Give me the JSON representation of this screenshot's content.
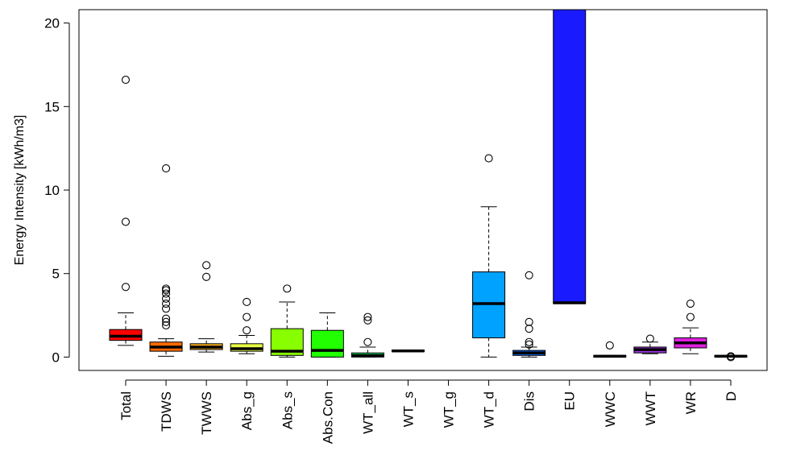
{
  "chart_data": {
    "type": "boxplot",
    "ylabel": "Energy Intensity [kWh/m3]",
    "ylim": [
      -0.8,
      20.8
    ],
    "yticks": [
      0,
      5,
      10,
      15,
      20
    ],
    "categories": [
      "Total",
      "TDWS",
      "TWWS",
      "Abs_g",
      "Abs_s",
      "Abs.Con",
      "WT_all",
      "WT_s",
      "WT_g",
      "WT_d",
      "Dis",
      "EU",
      "WWC",
      "WWT",
      "WR",
      "D"
    ],
    "boxes": [
      {
        "name": "Total",
        "color": "#ff0000",
        "q1": 1.0,
        "median": 1.25,
        "q3": 1.65,
        "whisker_low": 0.7,
        "whisker_high": 2.65,
        "outliers": [
          4.2,
          8.1,
          16.6
        ]
      },
      {
        "name": "TDWS",
        "color": "#ff6a00",
        "q1": 0.35,
        "median": 0.6,
        "q3": 0.9,
        "whisker_low": 0.05,
        "whisker_high": 1.1,
        "outliers": [
          1.9,
          2.1,
          2.3,
          2.9,
          3.2,
          3.5,
          3.8,
          4.0,
          4.1,
          11.3
        ]
      },
      {
        "name": "TWWS",
        "color": "#ffae1a",
        "q1": 0.45,
        "median": 0.6,
        "q3": 0.8,
        "whisker_low": 0.3,
        "whisker_high": 1.1,
        "outliers": [
          4.8,
          5.5
        ]
      },
      {
        "name": "Abs_g",
        "color": "#e8ff40",
        "q1": 0.35,
        "median": 0.5,
        "q3": 0.8,
        "whisker_low": 0.2,
        "whisker_high": 1.3,
        "outliers": [
          1.6,
          2.4,
          3.3
        ]
      },
      {
        "name": "Abs_s",
        "color": "#88ff00",
        "q1": 0.1,
        "median": 0.35,
        "q3": 1.7,
        "whisker_low": 0.0,
        "whisker_high": 3.3,
        "outliers": [
          4.1
        ]
      },
      {
        "name": "Abs.Con",
        "color": "#22ff00",
        "q1": 0.0,
        "median": 0.4,
        "q3": 1.6,
        "whisker_low": 0.0,
        "whisker_high": 2.65,
        "outliers": []
      },
      {
        "name": "WT_all",
        "color": "#20ff70",
        "q1": 0.0,
        "median": 0.1,
        "q3": 0.25,
        "whisker_low": 0.0,
        "whisker_high": 0.6,
        "outliers": [
          0.9,
          2.2,
          2.4
        ]
      },
      {
        "name": "WT_s",
        "color": "#00ffcc",
        "q1": 0.33,
        "median": 0.37,
        "q3": 0.42,
        "whisker_low": 0.33,
        "whisker_high": 0.42,
        "outliers": []
      },
      {
        "name": "WT_g",
        "color": "#00e5ff",
        "q1": null,
        "median": null,
        "q3": null,
        "whisker_low": null,
        "whisker_high": null,
        "outliers": []
      },
      {
        "name": "WT_d",
        "color": "#00a2ff",
        "q1": 1.15,
        "median": 3.2,
        "q3": 5.1,
        "whisker_low": 0.0,
        "whisker_high": 9.0,
        "outliers": [
          11.9
        ]
      },
      {
        "name": "Dis",
        "color": "#0066ff",
        "q1": 0.1,
        "median": 0.25,
        "q3": 0.4,
        "whisker_low": 0.0,
        "whisker_high": 0.6,
        "outliers": [
          0.75,
          0.9,
          1.7,
          2.1,
          4.9
        ]
      },
      {
        "name": "EU",
        "color": "#1a1aff",
        "q1": 3.2,
        "median": 3.25,
        "q3": 21.0,
        "whisker_low": 3.2,
        "whisker_high": 21.0,
        "outliers": []
      },
      {
        "name": "WWC",
        "color": "#5500ff",
        "q1": 0.0,
        "median": 0.05,
        "q3": 0.1,
        "whisker_low": 0.0,
        "whisker_high": 0.1,
        "outliers": [
          0.7
        ]
      },
      {
        "name": "WWT",
        "color": "#9a32e0",
        "q1": 0.25,
        "median": 0.45,
        "q3": 0.6,
        "whisker_low": 0.2,
        "whisker_high": 0.9,
        "outliers": [
          1.1
        ]
      },
      {
        "name": "WR",
        "color": "#e020e0",
        "q1": 0.55,
        "median": 0.85,
        "q3": 1.15,
        "whisker_low": 0.2,
        "whisker_high": 1.75,
        "outliers": [
          2.4,
          3.2
        ]
      },
      {
        "name": "D",
        "color": "#ff0090",
        "q1": 0.0,
        "median": 0.05,
        "q3": 0.1,
        "whisker_low": 0.0,
        "whisker_high": 0.1,
        "outliers": [
          0.0,
          0.05
        ]
      }
    ]
  }
}
